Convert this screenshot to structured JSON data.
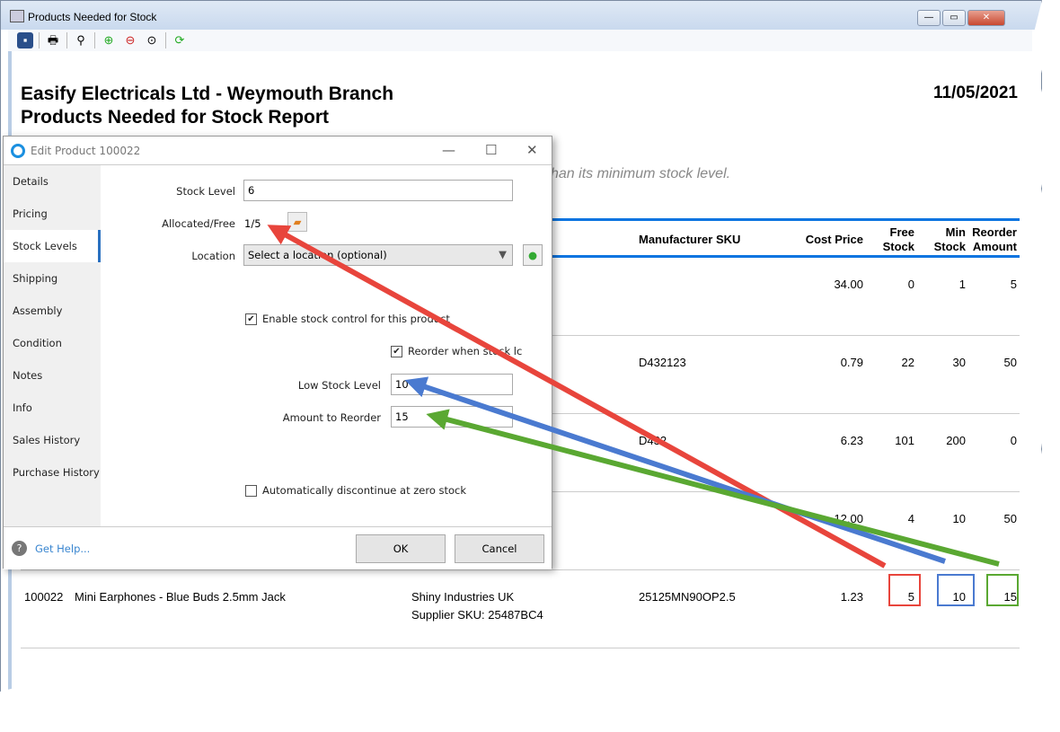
{
  "window": {
    "title": "Products Needed for Stock"
  },
  "toolbar": {
    "icons": [
      "save-icon",
      "print-icon",
      "find-icon",
      "zoom-in-icon",
      "zoom-out-icon",
      "zoom-actual-icon",
      "refresh-icon"
    ]
  },
  "report": {
    "company": "Easify Electricals Ltd - Weymouth Branch",
    "title": "Products Needed for Stock Report",
    "date": "11/05/2021",
    "subtitle": "han its minimum stock level.",
    "headers": {
      "mfr_sku": "Manufacturer SKU",
      "cost": "Cost Price",
      "free1": "Free",
      "free2": "Stock",
      "min1": "Min",
      "min2": "Stock",
      "reo1": "Reorder",
      "reo2": "Amount"
    },
    "rows": [
      {
        "mfr_sku": "",
        "cost": "34.00",
        "free": "0",
        "min": "1",
        "reorder": "5"
      },
      {
        "mfr_sku": "D432123",
        "cost": "0.79",
        "free": "22",
        "min": "30",
        "reorder": "50"
      },
      {
        "mfr_sku": "D432",
        "cost": "6.23",
        "free": "101",
        "min": "200",
        "reorder": "0"
      },
      {
        "mfr_sku": "",
        "cost": "12.00",
        "free": "4",
        "min": "10",
        "reorder": "50"
      },
      {
        "code": "100022",
        "name": "Mini Earphones - Blue Buds 2.5mm Jack",
        "supplier": "Shiny Industries UK",
        "supplier_sku": "Supplier SKU: 25487BC4",
        "mfr_sku": "25125MN90OP2.5",
        "cost": "1.23",
        "free": "5",
        "min": "10",
        "reorder": "15"
      }
    ]
  },
  "dialog": {
    "title": "Edit Product 100022",
    "tabs": [
      "Details",
      "Pricing",
      "Stock Levels",
      "Shipping",
      "Assembly",
      "Condition",
      "Notes",
      "Info",
      "Sales History",
      "Purchase History"
    ],
    "active_tab": "Stock Levels",
    "stock_level_label": "Stock Level",
    "stock_level": "6",
    "allocated_label": "Allocated/Free",
    "allocated": "1/5",
    "location_label": "Location",
    "location": "Select a location (optional)",
    "enable_stock": "Enable stock control for this product",
    "enable_checked": true,
    "reorder_when": "Reorder when stock lc",
    "reorder_checked": true,
    "low_label": "Low Stock Level",
    "low": "10",
    "amount_label": "Amount to Reorder",
    "amount": "15",
    "auto_disc": "Automatically discontinue at zero stock",
    "auto_checked": false,
    "help": "Get Help...",
    "ok": "OK",
    "cancel": "Cancel"
  },
  "colors": {
    "red": "#e8453c",
    "blue": "#4a7ad0",
    "green": "#5aa832",
    "header_line": "#0a74e0"
  }
}
